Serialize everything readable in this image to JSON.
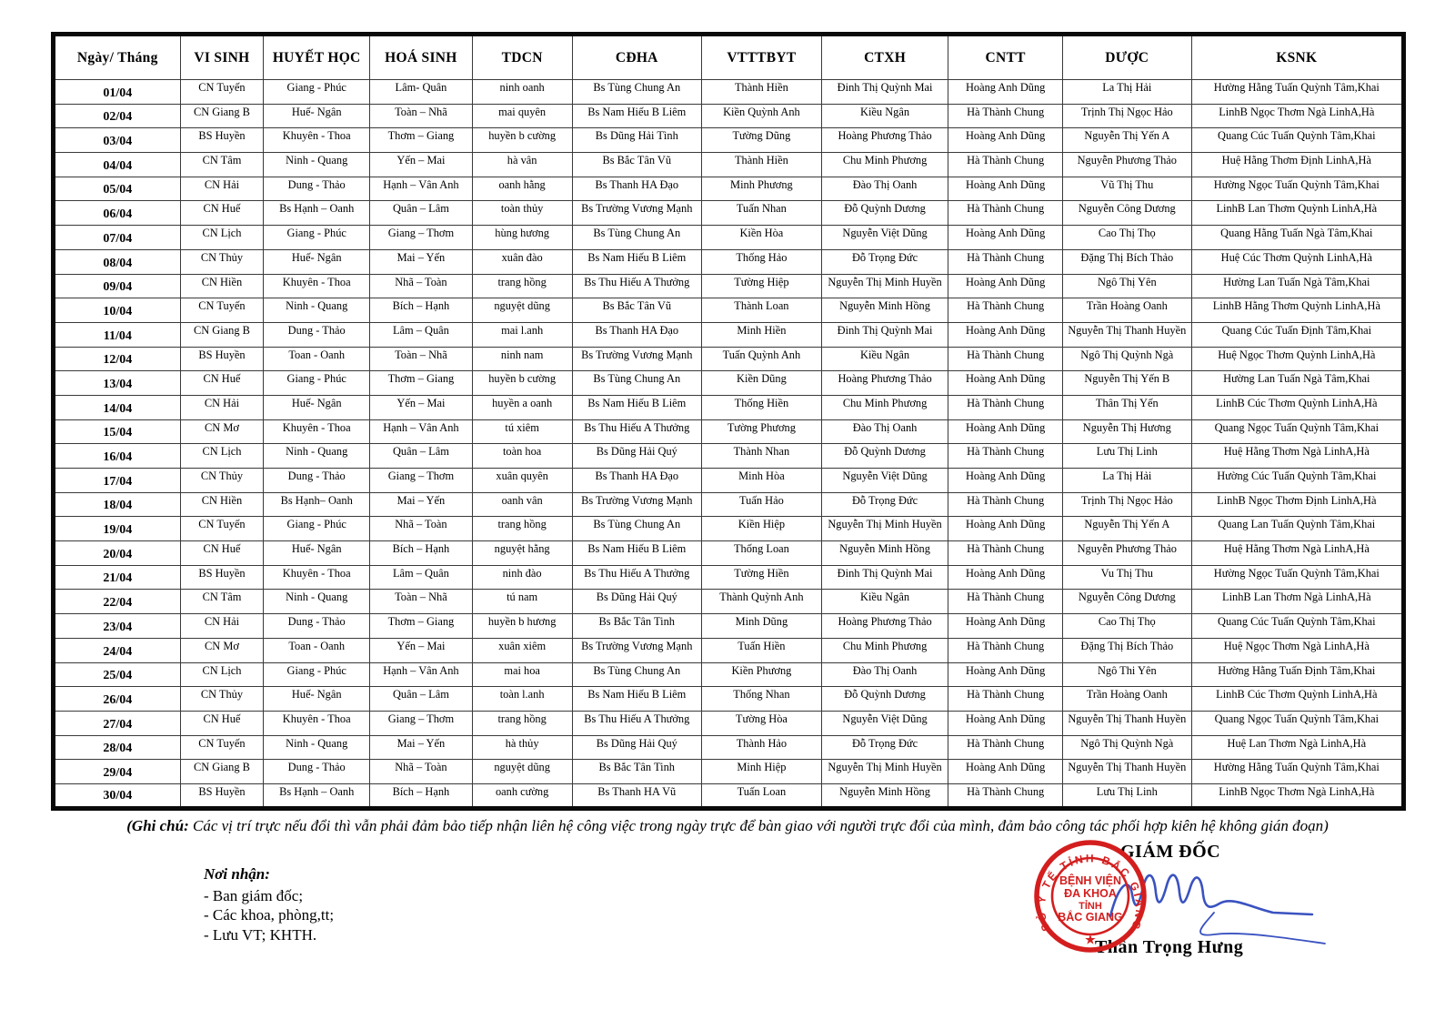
{
  "table": {
    "columns": [
      "Ngày/ Tháng",
      "VI SINH",
      "HUYẾT HỌC",
      "HOÁ SINH",
      "TDCN",
      "CĐHA",
      "VTTTBYT",
      "CTXH",
      "CNTT",
      "DƯỢC",
      "KSNK"
    ],
    "rows": [
      {
        "date": "01/04",
        "cells": [
          "CN Tuyến",
          "Giang - Phúc",
          "Lâm- Quân",
          "ninh oanh",
          "Bs Tùng Chung An",
          "Thành Hiền",
          "Đinh Thị Quỳnh Mai",
          "Hoàng Anh Dũng",
          "La Thị Hải",
          "Hường Hằng Tuấn Quỳnh Tâm,Khai"
        ]
      },
      {
        "date": "02/04",
        "cells": [
          "CN Giang B",
          "Huế- Ngân",
          "Toàn – Nhã",
          "mai quyên",
          "Bs Nam Hiếu B Liêm",
          "Kiền Quỳnh Anh",
          "Kiều Ngân",
          "Hà Thành Chung",
          "Trịnh Thị Ngọc Hảo",
          "LinhB Ngọc Thơm Ngà LinhA,Hà"
        ]
      },
      {
        "date": "03/04",
        "cells": [
          "BS Huyền",
          "Khuyên - Thoa",
          "Thơm – Giang",
          "huyền b cường",
          "Bs Dũng Hải Tình",
          "Tường Dũng",
          "Hoàng Phương Thảo",
          "Hoàng Anh Dũng",
          "Nguyễn Thị Yến A",
          "Quang Cúc Tuấn Quỳnh Tâm,Khai"
        ]
      },
      {
        "date": "04/04",
        "cells": [
          "CN Tâm",
          "Ninh - Quang",
          "Yến – Mai",
          "hà vân",
          "Bs Bắc Tân Vũ",
          "Thành Hiền",
          "Chu Minh Phương",
          "Hà Thành Chung",
          "Nguyễn Phương Thảo",
          "Huệ Hằng Thơm Định LinhA,Hà"
        ]
      },
      {
        "date": "05/04",
        "cells": [
          "CN Hải",
          "Dung - Thảo",
          "Hạnh – Vân Anh",
          "oanh hằng",
          "Bs Thanh HA Đạo",
          "Minh Phương",
          "Đào Thị Oanh",
          "Hoàng Anh Dũng",
          "Vũ Thị Thu",
          "Hường Ngọc Tuấn Quỳnh Tâm,Khai"
        ]
      },
      {
        "date": "06/04",
        "cells": [
          "CN Huế",
          "Bs Hạnh – Oanh",
          "Quân – Lâm",
          "toàn thủy",
          "Bs Trường Vương Mạnh",
          "Tuấn Nhan",
          "Đỗ Quỳnh Dương",
          "Hà Thành Chung",
          "Nguyễn Công Dương",
          "LinhB Lan Thơm Quỳnh LinhA,Hà"
        ]
      },
      {
        "date": "07/04",
        "cells": [
          "CN Lịch",
          "Giang - Phúc",
          "Giang – Thơm",
          "hùng hương",
          "Bs Tùng Chung An",
          "Kiền Hòa",
          "Nguyễn Việt Dũng",
          "Hoàng Anh Dũng",
          "Cao Thị Thọ",
          "Quang Hằng Tuấn Ngà Tâm,Khai"
        ]
      },
      {
        "date": "08/04",
        "cells": [
          "CN Thủy",
          "Huế- Ngân",
          "Mai – Yến",
          "xuân đào",
          "Bs Nam Hiếu B Liêm",
          "Thống Hảo",
          "Đỗ Trọng Đức",
          "Hà Thành Chung",
          "Đặng Thị Bích Thảo",
          "Huệ Cúc Thơm Quỳnh LinhA,Hà"
        ]
      },
      {
        "date": "09/04",
        "cells": [
          "CN Hiền",
          "Khuyên - Thoa",
          "Nhã – Toàn",
          "trang hồng",
          "Bs Thu Hiếu A Thưởng",
          "Tường Hiệp",
          "Nguyễn Thị Minh Huyền",
          "Hoàng Anh Dũng",
          "Ngô Thị Yên",
          "Hường Lan Tuấn Ngà Tâm,Khai"
        ]
      },
      {
        "date": "10/04",
        "cells": [
          "CN Tuyến",
          "Ninh - Quang",
          "Bích – Hạnh",
          "nguyệt dũng",
          "Bs Bắc Tân Vũ",
          "Thành Loan",
          "Nguyễn Minh Hồng",
          "Hà Thành Chung",
          "Trần Hoàng Oanh",
          "LinhB Hằng Thơm Quỳnh LinhA,Hà"
        ]
      },
      {
        "date": "11/04",
        "cells": [
          "CN Giang B",
          "Dung - Thảo",
          "Lâm – Quân",
          "mai l.anh",
          "Bs Thanh HA Đạo",
          "Minh Hiền",
          "Đinh Thị Quỳnh Mai",
          "Hoàng Anh Dũng",
          "Nguyễn Thị Thanh Huyền",
          "Quang Cúc Tuấn Định Tâm,Khai"
        ]
      },
      {
        "date": "12/04",
        "cells": [
          "BS Huyền",
          "Toan - Oanh",
          "Toàn – Nhã",
          "ninh nam",
          "Bs Trường Vương Mạnh",
          "Tuấn Quỳnh Anh",
          "Kiều Ngân",
          "Hà Thành Chung",
          "Ngô Thị Quỳnh Ngà",
          "Huệ Ngọc Thơm Quỳnh LinhA,Hà"
        ]
      },
      {
        "date": "13/04",
        "cells": [
          "CN Huế",
          "Giang - Phúc",
          "Thơm – Giang",
          "huyền b cường",
          "Bs Tùng Chung An",
          "Kiền Dũng",
          "Hoàng Phương Thảo",
          "Hoàng Anh Dũng",
          "Nguyễn Thị Yến B",
          "Hường Lan Tuấn Ngà Tâm,Khai"
        ]
      },
      {
        "date": "14/04",
        "cells": [
          "CN Hải",
          "Huế- Ngân",
          "Yến – Mai",
          "huyền a oanh",
          "Bs Nam Hiếu B Liêm",
          "Thống Hiền",
          "Chu Minh Phương",
          "Hà Thành Chung",
          "Thân Thị Yến",
          "LinhB Cúc Thơm Quỳnh LinhA,Hà"
        ]
      },
      {
        "date": "15/04",
        "cells": [
          "CN Mơ",
          "Khuyên - Thoa",
          "Hạnh – Vân Anh",
          "tú xiêm",
          "Bs Thu Hiếu A Thưởng",
          "Tường Phương",
          "Đào Thị Oanh",
          "Hoàng Anh Dũng",
          "Nguyễn Thị Hương",
          "Quang Ngọc Tuấn Quỳnh Tâm,Khai"
        ]
      },
      {
        "date": "16/04",
        "cells": [
          "CN Lịch",
          "Ninh - Quang",
          "Quân – Lâm",
          "toàn hoa",
          "Bs Dũng Hải Quý",
          "Thành Nhan",
          "Đỗ Quỳnh Dương",
          "Hà Thành Chung",
          "Lưu Thị Linh",
          "Huệ Hằng Thơm Ngà LinhA,Hà"
        ]
      },
      {
        "date": "17/04",
        "cells": [
          "CN Thủy",
          "Dung - Thảo",
          "Giang – Thơm",
          "xuân quyên",
          "Bs Thanh HA Đạo",
          "Minh Hòa",
          "Nguyễn Việt Dũng",
          "Hoàng Anh Dũng",
          "La Thị Hải",
          "Hường Cúc Tuấn Quỳnh Tâm,Khai"
        ]
      },
      {
        "date": "18/04",
        "cells": [
          "CN Hiền",
          "Bs Hạnh– Oanh",
          "Mai – Yến",
          "oanh vân",
          "Bs Trường Vương Mạnh",
          "Tuấn Hảo",
          "Đỗ Trọng Đức",
          "Hà Thành Chung",
          "Trịnh Thị Ngọc Hảo",
          "LinhB Ngọc Thơm Định LinhA,Hà"
        ]
      },
      {
        "date": "19/04",
        "cells": [
          "CN Tuyến",
          "Giang - Phúc",
          "Nhã – Toàn",
          "trang hồng",
          "Bs Tùng Chung An",
          "Kiền Hiệp",
          "Nguyễn Thị Minh Huyền",
          "Hoàng Anh Dũng",
          "Nguyễn Thị Yến A",
          "Quang Lan Tuấn Quỳnh Tâm,Khai"
        ]
      },
      {
        "date": "20/04",
        "cells": [
          "CN Huế",
          "Huế- Ngân",
          "Bích – Hạnh",
          "nguyệt hằng",
          "Bs Nam Hiếu B Liêm",
          "Thống Loan",
          "Nguyễn Minh Hồng",
          "Hà Thành Chung",
          "Nguyễn Phương Thảo",
          "Huệ Hằng Thơm Ngà LinhA,Hà"
        ]
      },
      {
        "date": "21/04",
        "cells": [
          "BS Huyền",
          "Khuyên - Thoa",
          "Lâm – Quân",
          "ninh đào",
          "Bs Thu Hiếu A Thưởng",
          "Tường Hiền",
          "Đinh Thị Quỳnh Mai",
          "Hoàng Anh Dũng",
          "Vu Thị Thu",
          "Hường Ngọc Tuấn Quỳnh Tâm,Khai"
        ]
      },
      {
        "date": "22/04",
        "cells": [
          "CN Tâm",
          "Ninh - Quang",
          "Toàn – Nhã",
          "tú nam",
          "Bs Dũng Hải Quý",
          "Thành Quỳnh Anh",
          "Kiều Ngân",
          "Hà Thành Chung",
          "Nguyễn Công Dương",
          "LinhB Lan Thơm Ngà LinhA,Hà"
        ]
      },
      {
        "date": "23/04",
        "cells": [
          "CN Hải",
          "Dung - Thảo",
          "Thơm – Giang",
          "huyền b hương",
          "Bs Bắc Tân Tinh",
          "Minh Dũng",
          "Hoàng Phương Thảo",
          "Hoàng Anh Dũng",
          "Cao Thị Thọ",
          "Quang Cúc Tuấn Quỳnh Tâm,Khai"
        ]
      },
      {
        "date": "24/04",
        "cells": [
          "CN Mơ",
          "Toan - Oanh",
          "Yến – Mai",
          "xuân xiêm",
          "Bs Trường Vương Mạnh",
          "Tuấn Hiền",
          "Chu Minh Phương",
          "Hà Thành Chung",
          "Đặng Thị Bích Thảo",
          "Huệ Ngọc Thơm Ngà LinhA,Hà"
        ]
      },
      {
        "date": "25/04",
        "cells": [
          "CN Lịch",
          "Giang - Phúc",
          "Hạnh – Vân Anh",
          "mai hoa",
          "Bs Tùng Chung An",
          "Kiền Phương",
          "Đào Thị Oanh",
          "Hoàng Anh Dũng",
          "Ngô Thi Yên",
          "Hường Hằng Tuấn Định Tâm,Khai"
        ]
      },
      {
        "date": "26/04",
        "cells": [
          "CN Thủy",
          "Huế- Ngân",
          "Quân – Lâm",
          "toàn l.anh",
          "Bs Nam Hiếu B Liêm",
          "Thống Nhan",
          "Đỗ Quỳnh Dương",
          "Hà Thành Chung",
          "Trần Hoàng Oanh",
          "LinhB Cúc Thơm Quỳnh LinhA,Hà"
        ]
      },
      {
        "date": "27/04",
        "cells": [
          "CN Huế",
          "Khuyên - Thoa",
          "Giang – Thơm",
          "trang hồng",
          "Bs Thu Hiếu A Thưởng",
          "Tường Hòa",
          "Nguyễn Việt Dũng",
          "Hoàng Anh Dũng",
          "Nguyễn Thị Thanh Huyền",
          "Quang Ngọc Tuấn Quỳnh Tâm,Khai"
        ]
      },
      {
        "date": "28/04",
        "cells": [
          "CN Tuyến",
          "Ninh - Quang",
          "Mai – Yến",
          "hà thủy",
          "Bs Dũng Hải Quý",
          "Thành Hảo",
          "Đỗ Trọng Đức",
          "Hà Thành Chung",
          "Ngô Thị Quỳnh Ngà",
          "Huệ Lan Thơm Ngà LinhA,Hà"
        ]
      },
      {
        "date": "29/04",
        "cells": [
          "CN Giang B",
          "Dung - Thảo",
          "Nhã – Toàn",
          "nguyệt dũng",
          "Bs Bắc Tân Tinh",
          "Minh Hiệp",
          "Nguyễn Thị Minh Huyền",
          "Hoàng Anh Dũng",
          "Nguyễn Thị Thanh Huyền",
          "Hường Hằng Tuấn Quỳnh Tâm,Khai"
        ]
      },
      {
        "date": "30/04",
        "cells": [
          "BS Huyền",
          "Bs Hạnh – Oanh",
          "Bích – Hạnh",
          "oanh cường",
          "Bs Thanh HA Vũ",
          "Tuấn Loan",
          "Nguyễn Minh Hồng",
          "Hà Thành Chung",
          "Lưu Thị Linh",
          "LinhB Ngọc Thơm Ngà LinhA,Hà"
        ]
      }
    ]
  },
  "note": {
    "label": "(Ghi chú:",
    "text": " Các vị trí trực nếu đổi thì vẫn phải đảm bảo tiếp nhận liên hệ công việc trong ngày trực để bàn giao với người trực đổi của mình, đảm bảo công tác phối hợp kiên hệ không gián đoạn)"
  },
  "recipients": {
    "title": "Nơi nhận:",
    "items": [
      "- Ban giám đốc;",
      "- Các khoa, phòng,tt;",
      "- Lưu VT; KHTH."
    ]
  },
  "signature": {
    "title": "GIÁM ĐỐC",
    "name": "Thân Trọng Hưng"
  },
  "stamp": {
    "ring_text": "SỞ Y TẾ TỈNH BẮC GIANG",
    "center_lines": [
      "BỆNH VIỆN",
      "ĐA KHOA",
      "TỈNH",
      "BẮC GIANG"
    ],
    "star": "★",
    "color": "#d41e1e"
  },
  "colors": {
    "stamp_red": "#d41e1e",
    "signature_blue": "#3a52c0",
    "border_black": "#0a0a0a"
  }
}
